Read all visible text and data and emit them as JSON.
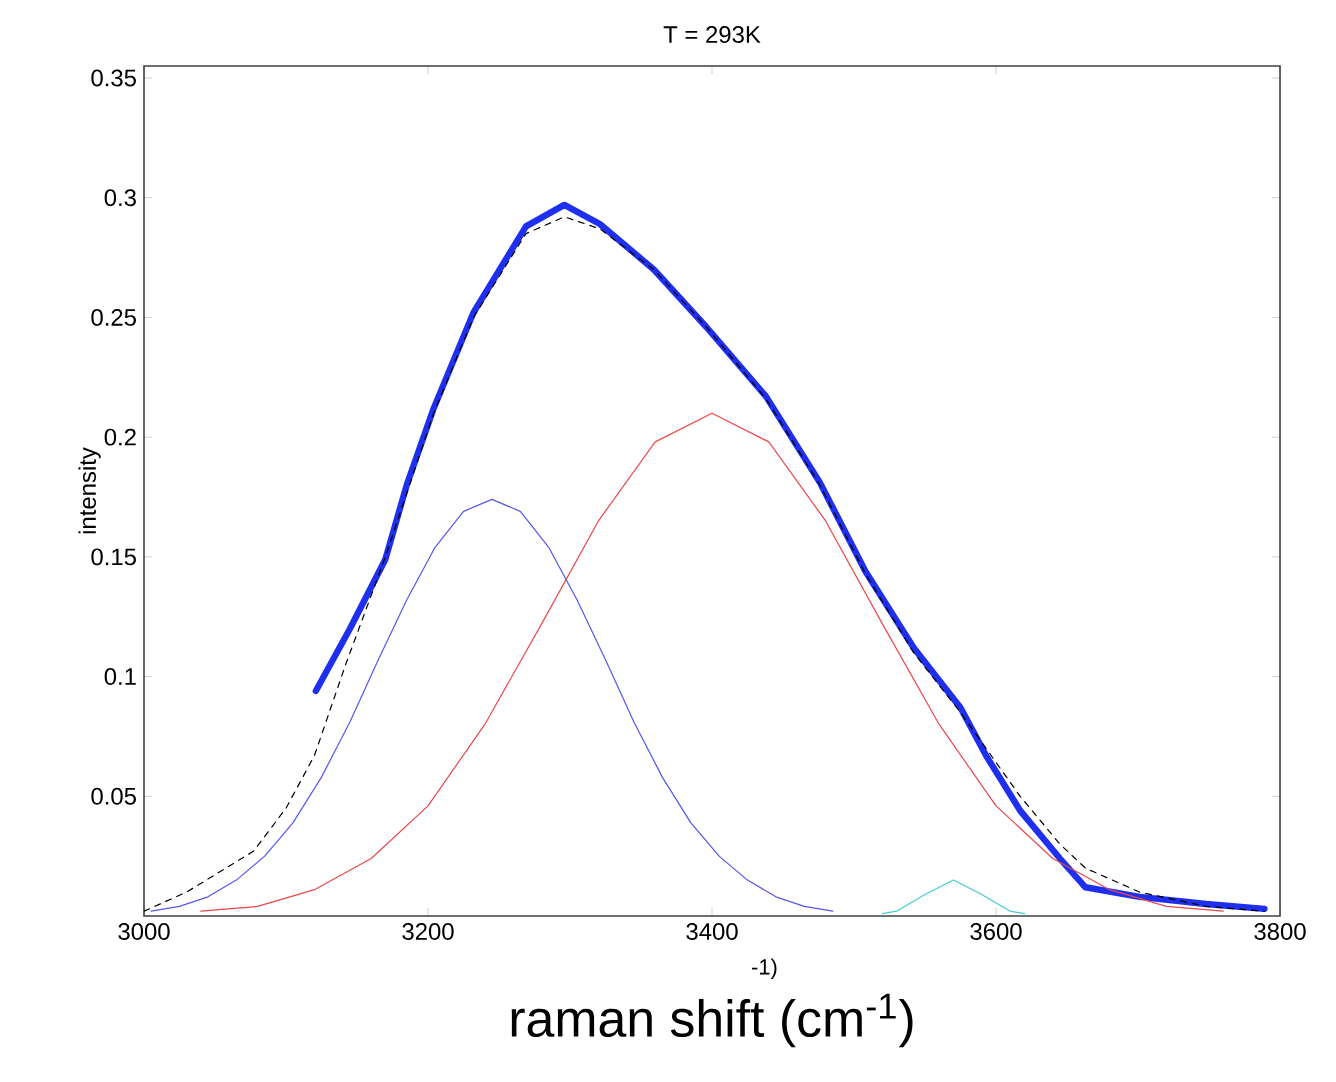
{
  "chart_data": {
    "type": "line",
    "title": "T = 293K",
    "xlabel": "raman shift (cm$^{-1}$)",
    "ylabel": "intensity",
    "annotations": [
      "-1)"
    ],
    "xlim": [
      3000,
      3800
    ],
    "xticks": [
      3000,
      3200,
      3400,
      3600,
      3800
    ],
    "ylim": [
      0,
      0.355
    ],
    "yticks": [
      0.05,
      0.1,
      0.15,
      0.2,
      0.25,
      0.3,
      0.35
    ],
    "grid": false,
    "marker": "none",
    "series": [
      {
        "color": "#1f2ff0",
        "line_style": "solid",
        "x": [
          3121,
          3145,
          3170,
          3185,
          3204,
          3232,
          3269,
          3296,
          3321,
          3359,
          3396,
          3438,
          3476,
          3508,
          3542,
          3575,
          3593,
          3617,
          3645,
          3663,
          3701,
          3748,
          3789
        ],
        "values": [
          0.094,
          0.12,
          0.149,
          0.18,
          0.212,
          0.252,
          0.288,
          0.297,
          0.289,
          0.27,
          0.246,
          0.217,
          0.181,
          0.144,
          0.112,
          0.087,
          0.067,
          0.044,
          0.024,
          0.012,
          0.008,
          0.005,
          0.003
        ]
      },
      {
        "color": "#000000",
        "line_style": "dashed",
        "x": [
          3000,
          3030,
          3077,
          3100,
          3120,
          3142,
          3170,
          3204,
          3232,
          3269,
          3296,
          3321,
          3359,
          3396,
          3438,
          3476,
          3508,
          3542,
          3575,
          3593,
          3617,
          3645,
          3663,
          3701,
          3748,
          3789
        ],
        "values": [
          0.002,
          0.01,
          0.027,
          0.045,
          0.067,
          0.105,
          0.15,
          0.21,
          0.25,
          0.285,
          0.292,
          0.287,
          0.27,
          0.246,
          0.216,
          0.18,
          0.143,
          0.11,
          0.085,
          0.07,
          0.05,
          0.03,
          0.02,
          0.01,
          0.004,
          0.002
        ]
      },
      {
        "color": "#5555ee",
        "line_style": "solid",
        "x": [
          3005,
          3025,
          3045,
          3065,
          3085,
          3105,
          3125,
          3145,
          3165,
          3185,
          3205,
          3225,
          3245,
          3265,
          3285,
          3305,
          3325,
          3345,
          3365,
          3385,
          3405,
          3425,
          3445,
          3465,
          3485
        ],
        "values": [
          0.002,
          0.004,
          0.008,
          0.015,
          0.025,
          0.039,
          0.058,
          0.081,
          0.107,
          0.132,
          0.154,
          0.169,
          0.174,
          0.169,
          0.154,
          0.132,
          0.107,
          0.081,
          0.058,
          0.039,
          0.025,
          0.015,
          0.008,
          0.004,
          0.002
        ]
      },
      {
        "color": "#e8474a",
        "line_style": "solid",
        "x": [
          3040,
          3080,
          3120,
          3160,
          3200,
          3240,
          3280,
          3320,
          3360,
          3400,
          3440,
          3480,
          3520,
          3560,
          3600,
          3640,
          3680,
          3720,
          3760
        ],
        "values": [
          0.002,
          0.004,
          0.011,
          0.024,
          0.046,
          0.08,
          0.122,
          0.165,
          0.198,
          0.21,
          0.198,
          0.165,
          0.122,
          0.08,
          0.046,
          0.024,
          0.011,
          0.004,
          0.002
        ]
      },
      {
        "color": "#44cccc",
        "line_style": "solid",
        "x": [
          3520,
          3530,
          3550,
          3570,
          3590,
          3610,
          3620
        ],
        "values": [
          0.001,
          0.002,
          0.009,
          0.015,
          0.009,
          0.002,
          0.001
        ]
      }
    ]
  }
}
